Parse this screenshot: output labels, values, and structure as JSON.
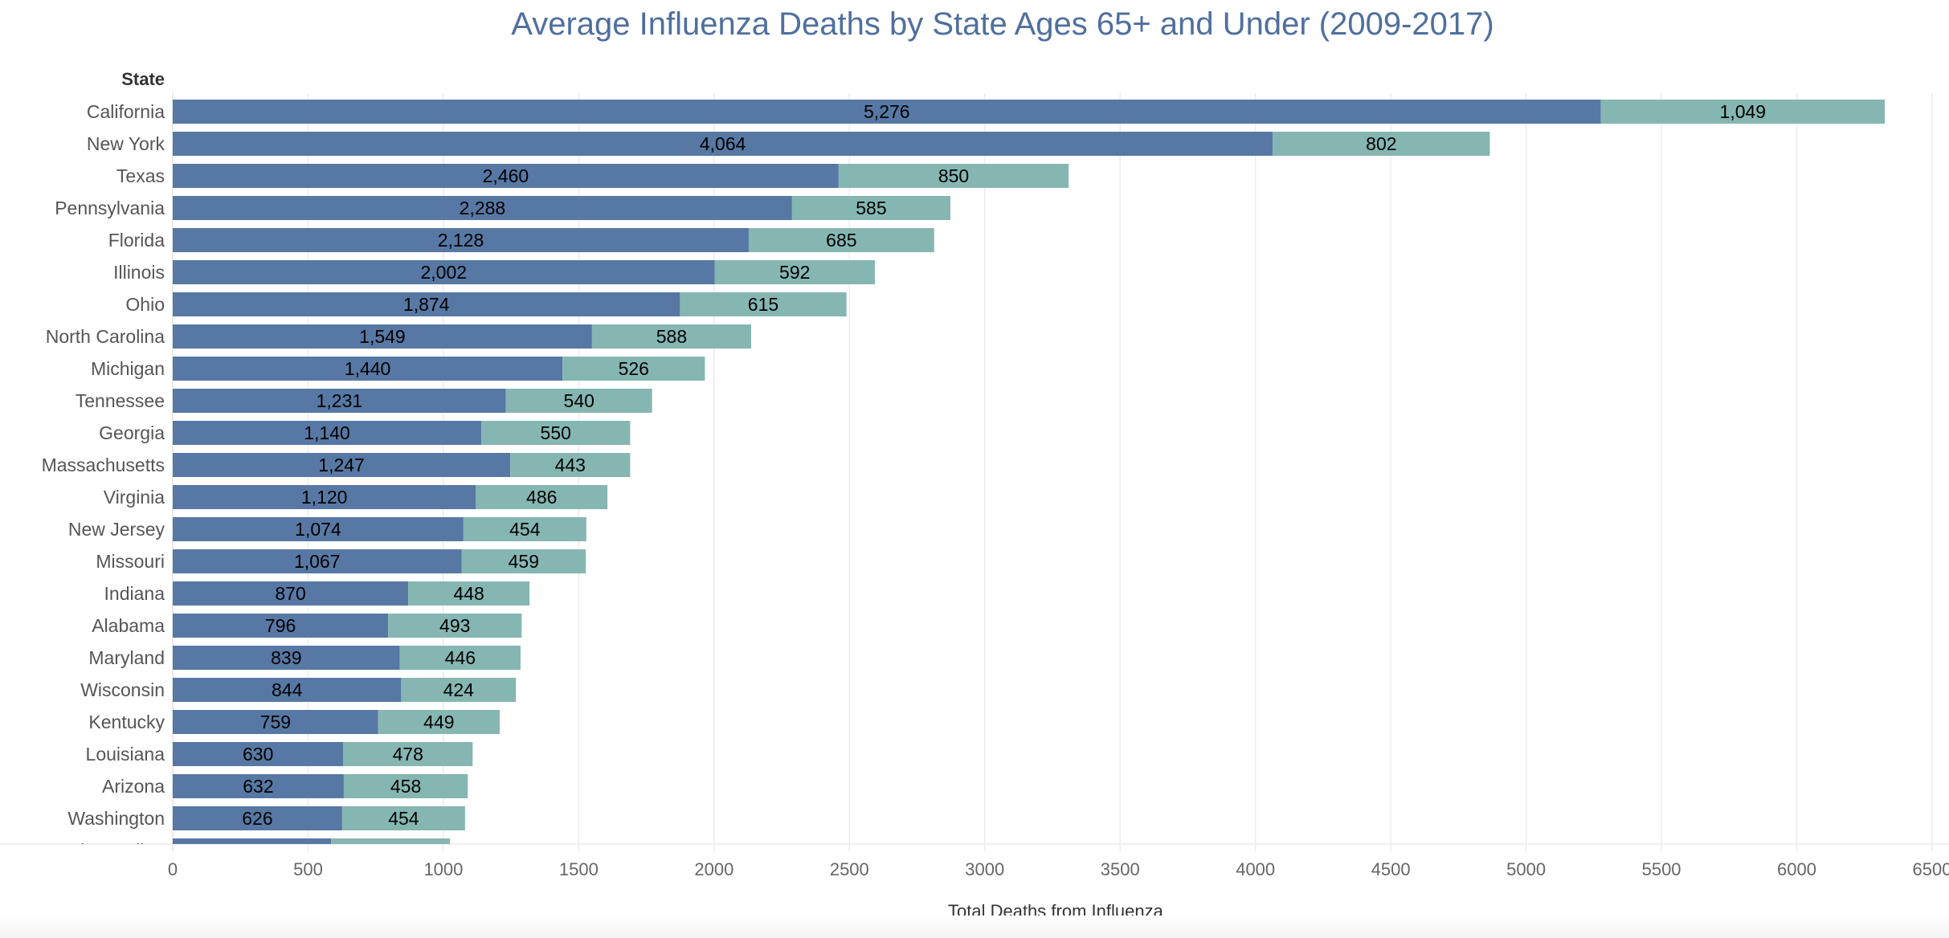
{
  "chart_data": {
    "type": "bar",
    "orientation": "horizontal",
    "stacked": true,
    "title": "Average Influenza Deaths by State Ages 65+ and Under (2009-2017)",
    "ylabel": "State",
    "xlabel": "Total Deaths from Influenza",
    "xlim": [
      0,
      6500
    ],
    "xticks": [
      0,
      500,
      1000,
      1500,
      2000,
      2500,
      3000,
      3500,
      4000,
      4500,
      5000,
      5500,
      6000,
      6500
    ],
    "grid": true,
    "colors": [
      "#5778a4",
      "#85b6b2"
    ],
    "categories": [
      "California",
      "New York",
      "Texas",
      "Pennsylvania",
      "Florida",
      "Illinois",
      "Ohio",
      "North Carolina",
      "Michigan",
      "Tennessee",
      "Georgia",
      "Massachusetts",
      "Virginia",
      "New Jersey",
      "Missouri",
      "Indiana",
      "Alabama",
      "Maryland",
      "Wisconsin",
      "Kentucky",
      "Louisiana",
      "Arizona",
      "Washington",
      "South Carolina"
    ],
    "series": [
      {
        "values": [
          5276,
          4064,
          2460,
          2288,
          2128,
          2002,
          1874,
          1549,
          1440,
          1231,
          1140,
          1247,
          1120,
          1074,
          1067,
          870,
          796,
          839,
          844,
          759,
          630,
          632,
          626,
          585
        ]
      },
      {
        "values": [
          1049,
          802,
          850,
          585,
          685,
          592,
          615,
          588,
          526,
          540,
          550,
          443,
          486,
          454,
          459,
          448,
          493,
          446,
          424,
          449,
          478,
          458,
          454,
          439
        ]
      }
    ]
  }
}
